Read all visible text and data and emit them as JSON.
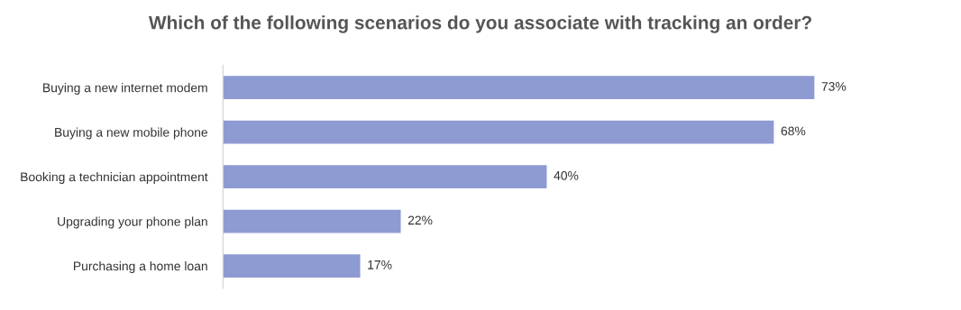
{
  "chart_data": {
    "type": "bar",
    "orientation": "horizontal",
    "title": "Which of the following scenarios do you associate with tracking an order?",
    "categories": [
      "Buying a new internet modem",
      "Buying a new mobile phone",
      "Booking a technician appointment",
      "Upgrading your phone plan",
      "Purchasing a home loan"
    ],
    "values": [
      73,
      68,
      40,
      22,
      17
    ],
    "value_labels": [
      "73%",
      "68%",
      "40%",
      "22%",
      "17%"
    ],
    "color": "#8e9ad2",
    "grid": false,
    "legend": false
  }
}
